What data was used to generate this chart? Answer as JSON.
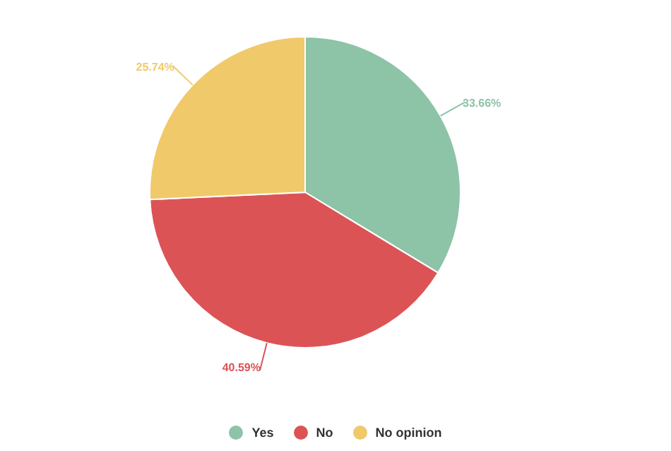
{
  "chart_data": {
    "type": "pie",
    "categories": [
      "Yes",
      "No",
      "No opinion"
    ],
    "values": [
      33.66,
      40.59,
      25.74
    ],
    "colors": [
      "#8dc3a7",
      "#dc5356",
      "#f0ca6a"
    ],
    "value_labels": [
      "33.66%",
      "40.59%",
      "25.74%"
    ],
    "legend": "bottom"
  }
}
